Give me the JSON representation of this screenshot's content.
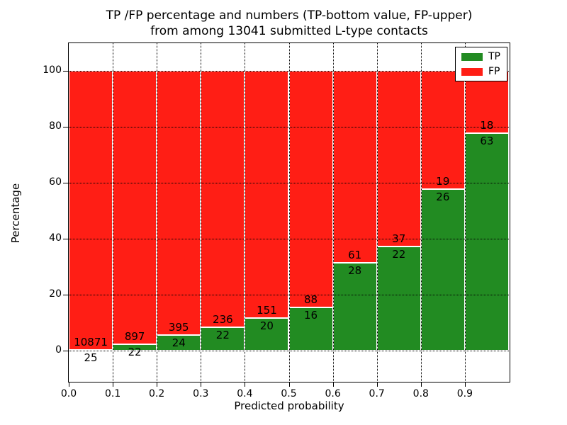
{
  "title": {
    "line1": "TP /FP percentage and numbers (TP-bottom value, FP-upper)",
    "line2": "from among 13041 submitted L-type contacts"
  },
  "chart_data": {
    "type": "bar",
    "stacked": true,
    "normalized_to_percent": true,
    "title": "TP /FP percentage and numbers (TP-bottom value, FP-upper) from among 13041 submitted L-type contacts",
    "total_contacts": 13041,
    "xlabel": "Predicted probability",
    "ylabel": "Percentage",
    "bin_start": 0.0,
    "bin_width": 0.1,
    "categories": [
      "0.0-0.1",
      "0.1-0.2",
      "0.2-0.3",
      "0.3-0.4",
      "0.4-0.5",
      "0.5-0.6",
      "0.6-0.7",
      "0.7-0.8",
      "0.8-0.9",
      "0.9-1.0"
    ],
    "series": [
      {
        "name": "TP",
        "color": "#228b22",
        "values": [
          25,
          22,
          24,
          22,
          20,
          16,
          28,
          22,
          26,
          63
        ]
      },
      {
        "name": "FP",
        "color": "#ff1e15",
        "values": [
          10871,
          897,
          395,
          236,
          151,
          88,
          61,
          37,
          19,
          18
        ]
      }
    ],
    "tp_percent_by_bin": [
      0.23,
      2.39,
      5.73,
      8.53,
      11.7,
      15.38,
      31.46,
      37.29,
      57.78,
      77.78
    ],
    "x_ticks": [
      0.0,
      0.1,
      0.2,
      0.3,
      0.4,
      0.5,
      0.6,
      0.7,
      0.8,
      0.9
    ],
    "x_tick_labels": [
      "0.0",
      "0.1",
      "0.2",
      "0.3",
      "0.4",
      "0.5",
      "0.6",
      "0.7",
      "0.8",
      "0.9"
    ],
    "y_ticks": [
      0,
      20,
      40,
      60,
      80,
      100
    ],
    "y_tick_labels": [
      "0",
      "20",
      "40",
      "60",
      "80",
      "100"
    ],
    "xlim": [
      0.0,
      1.0
    ],
    "ylim": [
      -10.8,
      109.8
    ],
    "grid": "dotted",
    "bar_edge_color": "#ffffff",
    "legend": {
      "position": "upper right",
      "entries": [
        {
          "label": "TP",
          "color": "#228b22"
        },
        {
          "label": "FP",
          "color": "#ff1e15"
        }
      ]
    }
  }
}
